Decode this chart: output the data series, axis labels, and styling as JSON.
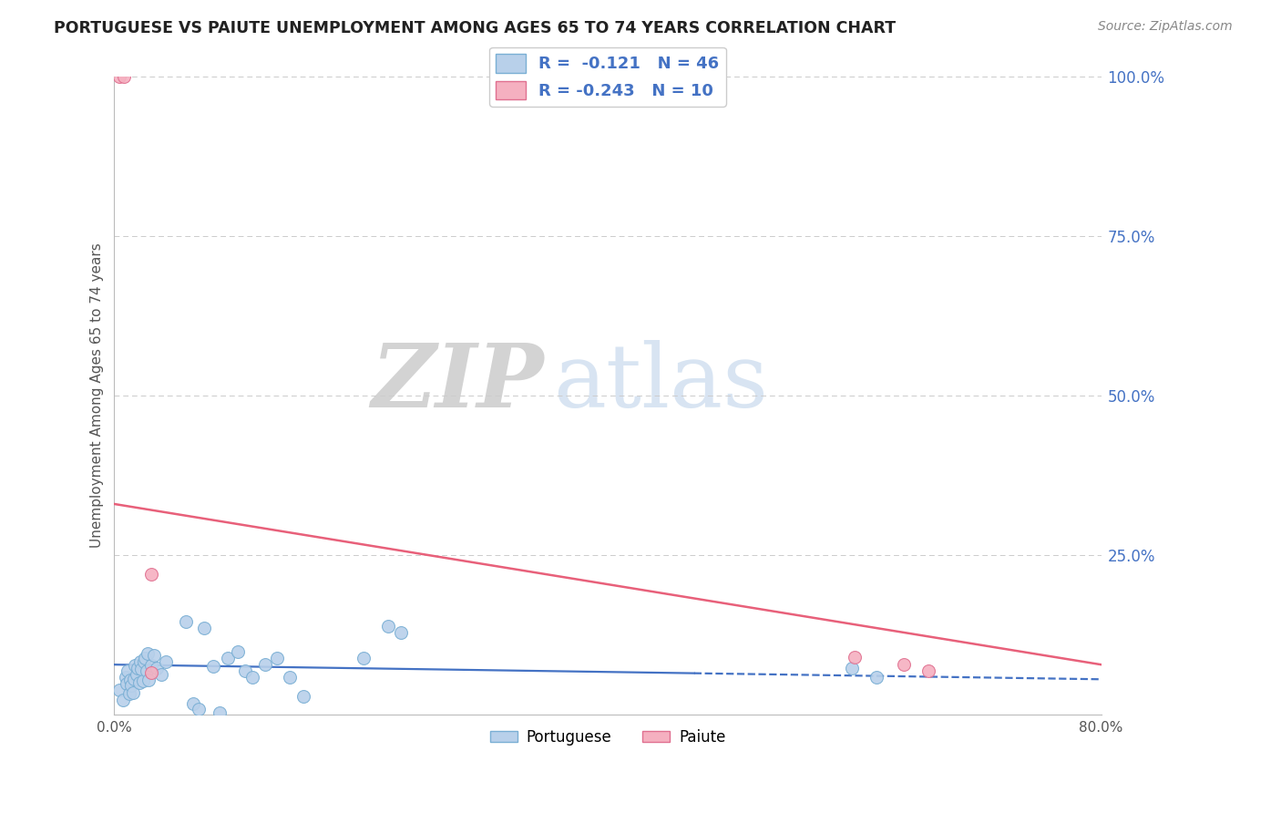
{
  "title": "PORTUGUESE VS PAIUTE UNEMPLOYMENT AMONG AGES 65 TO 74 YEARS CORRELATION CHART",
  "source": "Source: ZipAtlas.com",
  "ylabel": "Unemployment Among Ages 65 to 74 years",
  "xlim": [
    0.0,
    0.8
  ],
  "ylim": [
    0.0,
    1.0
  ],
  "yticks": [
    0.0,
    0.25,
    0.5,
    0.75,
    1.0
  ],
  "yticklabels_right": [
    "",
    "25.0%",
    "50.0%",
    "75.0%",
    "100.0%"
  ],
  "portuguese_color": "#b8d0ea",
  "paiute_color": "#f5b0c0",
  "portuguese_edge": "#7aafd4",
  "paiute_edge": "#e07090",
  "trend_portuguese_color": "#4472c4",
  "trend_paiute_color": "#e8607a",
  "legend_text_color": "#4472c4",
  "right_tick_color": "#4472c4",
  "portuguese_x": [
    0.004,
    0.007,
    0.009,
    0.01,
    0.011,
    0.012,
    0.013,
    0.014,
    0.015,
    0.016,
    0.017,
    0.018,
    0.019,
    0.02,
    0.021,
    0.022,
    0.023,
    0.024,
    0.025,
    0.026,
    0.027,
    0.028,
    0.03,
    0.032,
    0.034,
    0.038,
    0.042,
    0.058,
    0.064,
    0.068,
    0.073,
    0.08,
    0.085,
    0.092,
    0.1,
    0.106,
    0.112,
    0.122,
    0.132,
    0.142,
    0.153,
    0.202,
    0.222,
    0.232,
    0.598,
    0.618
  ],
  "portuguese_y": [
    0.038,
    0.022,
    0.058,
    0.048,
    0.068,
    0.032,
    0.054,
    0.046,
    0.034,
    0.056,
    0.077,
    0.062,
    0.072,
    0.05,
    0.083,
    0.071,
    0.052,
    0.082,
    0.088,
    0.068,
    0.096,
    0.054,
    0.077,
    0.092,
    0.072,
    0.062,
    0.082,
    0.146,
    0.017,
    0.008,
    0.136,
    0.076,
    0.003,
    0.088,
    0.098,
    0.068,
    0.058,
    0.078,
    0.088,
    0.058,
    0.028,
    0.088,
    0.138,
    0.128,
    0.072,
    0.058
  ],
  "paiute_x": [
    0.004,
    0.008,
    0.03,
    0.03,
    0.6,
    0.64,
    0.66
  ],
  "paiute_y": [
    1.0,
    1.0,
    0.22,
    0.065,
    0.09,
    0.078,
    0.068
  ],
  "paiute_trend_start_x": 0.0,
  "paiute_trend_start_y": 0.33,
  "paiute_trend_end_x": 0.8,
  "paiute_trend_end_y": 0.078,
  "port_trend_solid_end": 0.47,
  "port_trend_start_y": 0.078,
  "port_trend_end_y": 0.055,
  "background_color": "#ffffff",
  "grid_color": "#cccccc",
  "title_color": "#222222",
  "marker_size": 100
}
